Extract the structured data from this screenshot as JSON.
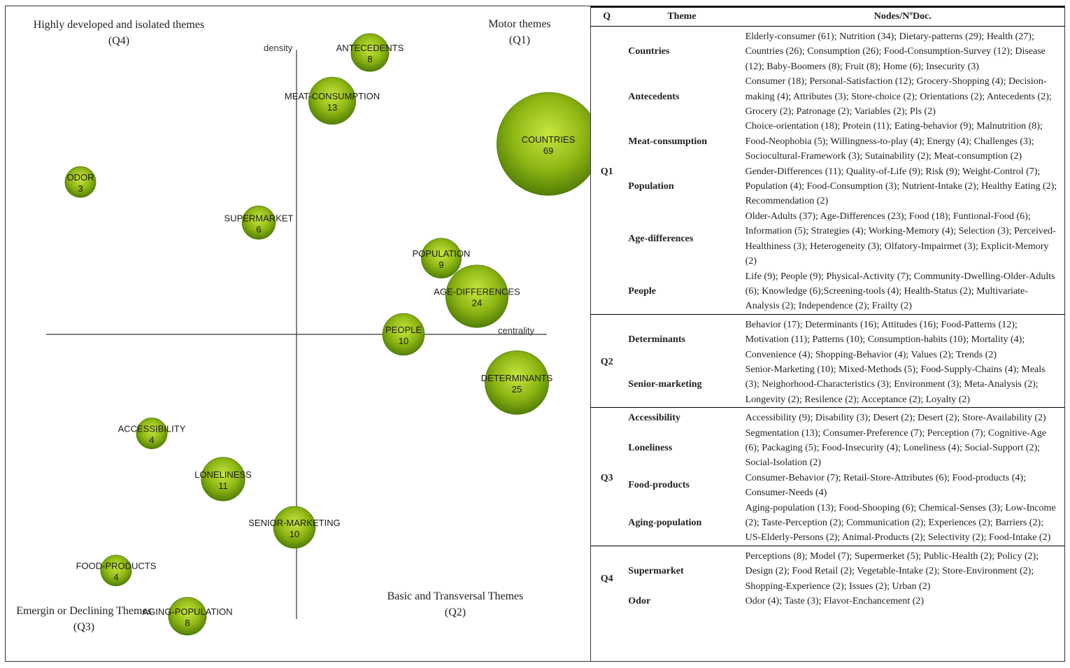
{
  "chart_data": {
    "type": "scatter",
    "subtype": "strategic-diagram-bubble",
    "xlabel": "centrality",
    "ylabel": "density",
    "bubble_color": "#8fb814",
    "bubble_highlight": "#c8e640",
    "bubble_shadow": "#4d7a05",
    "quadrants": [
      {
        "id": "q4",
        "title": "Highly developed and isolated themes",
        "code": "(Q4)",
        "position": "top-left"
      },
      {
        "id": "q1",
        "title": "Motor themes",
        "code": "(Q1)",
        "position": "top-right"
      },
      {
        "id": "q3",
        "title": "Emergin or Declining Themes",
        "code": "(Q3)",
        "position": "bottom-left"
      },
      {
        "id": "q2",
        "title": "Basic and Transversal Themes",
        "code": "(Q2)",
        "position": "bottom-right"
      }
    ],
    "x_range": [
      -12,
      12
    ],
    "y_range": [
      -12,
      12
    ],
    "points": [
      {
        "label": "ANTECEDENTS",
        "value": 8,
        "x": 3.5,
        "y": 11.1
      },
      {
        "label": "MEAT-CONSUMPTION",
        "value": 13,
        "x": 1.7,
        "y": 9.2
      },
      {
        "label": "COUNTRIES",
        "value": 69,
        "x": 12.0,
        "y": 7.5
      },
      {
        "label": "ODOR",
        "value": 3,
        "x": -10.3,
        "y": 6.0
      },
      {
        "label": "SUPERMARKET",
        "value": 6,
        "x": -1.8,
        "y": 4.4
      },
      {
        "label": "POPULATION",
        "value": 9,
        "x": 6.9,
        "y": 3.0
      },
      {
        "label": "AGE-DIFFERENCES",
        "value": 24,
        "x": 8.6,
        "y": 1.5
      },
      {
        "label": "PEOPLE",
        "value": 10,
        "x": 5.1,
        "y": 0.0
      },
      {
        "label": "DETERMINANTS",
        "value": 25,
        "x": 10.5,
        "y": -1.9
      },
      {
        "label": "ACCESSIBILITY",
        "value": 4,
        "x": -6.9,
        "y": -3.9
      },
      {
        "label": "LONELINESS",
        "value": 11,
        "x": -3.5,
        "y": -5.7
      },
      {
        "label": "SENIOR-MARKETING",
        "value": 10,
        "x": -0.1,
        "y": -7.6
      },
      {
        "label": "FOOD-PRODUCTS",
        "value": 4,
        "x": -8.6,
        "y": -9.3
      },
      {
        "label": "AGING-POPULATION",
        "value": 8,
        "x": -5.2,
        "y": -11.1
      }
    ]
  },
  "table": {
    "headers": {
      "q": "Q",
      "theme": "Theme",
      "nodes": "Nodes/NºDoc."
    },
    "groups": [
      {
        "q": "Q1",
        "rows": [
          {
            "theme": "Countries",
            "nodes": "Elderly-consumer (61); Nutrition (34); Dietary-patterns (29); Health (27); Countries (26); Consumption (26); Food-Consumption-Survey (12); Disease (12); Baby-Boomers (8); Fruit (8); Home (6); Insecurity (3)"
          },
          {
            "theme": "Antecedents",
            "nodes": "Consumer (18); Personal-Satisfaction (12); Grocery-Shopping (4); Decision-making (4); Attributes (3); Store-choice (2); Orientations (2); Antecedents (2); Grocery (2); Patronage (2); Variables (2); Pls (2)"
          },
          {
            "theme": "Meat-consumption",
            "nodes": "Choice-orientation (18); Protein (11); Eating-behavior (9); Malnutrition (8); Food-Neophobia (5); Willingness-to-play (4); Energy (4); Challenges (3); Sociocultural-Framework (3); Sutainability (2); Meat-consumption (2)"
          },
          {
            "theme": "Population",
            "nodes": "Gender-Differences (11); Quality-of-Life (9); Risk (9); Weight-Control (7); Population (4); Food-Consumption (3); Nutrient-Intake (2); Healthy Eating (2); Recommendation (2)"
          },
          {
            "theme": "Age-differences",
            "nodes": "Older-Adults (37); Age-Differences (23); Food (18); Funtional-Food (6); Information (5); Strategies (4); Working-Memory (4); Selection (3); Perceived-Healthiness (3); Heterogeneity (3); Olfatory-Impairmet (3); Explicit-Memory (2)"
          },
          {
            "theme": "People",
            "nodes": "Life (9); People (9); Physical-Activity (7); Community-Dwelling-Older-Adults (6); Knowledge (6);Screening-tools (4); Health-Status (2); Multivariate-Analysis (2); Independence (2); Frailty (2)"
          }
        ]
      },
      {
        "q": "Q2",
        "rows": [
          {
            "theme": "Determinants",
            "nodes": "Behavior (17); Determinants (16); Attitudes (16); Food-Patterns (12); Motivation (11); Patterns (10); Consumption-habits (10); Mortality (4); Convenience (4); Shopping-Behavior (4); Values (2); Trends (2)"
          },
          {
            "theme": "Senior-marketing",
            "nodes": "Senior-Marketing (10); Mixed-Methods (5); Food-Supply-Chains (4); Meals (3); Neighorhood-Characteristics (3); Environment (3); Meta-Analysis (2); Longevity (2); Resilence (2); Acceptance (2); Loyalty (2)"
          }
        ]
      },
      {
        "q": "Q3",
        "rows": [
          {
            "theme": "Accessibility",
            "nodes": "Accessibility (9); Disability (3); Desert (2); Desert (2); Store-Availability (2)"
          },
          {
            "theme": "Loneliness",
            "nodes": "Segmentation (13); Consumer-Preference (7); Perception (7); Cognitive-Age (6); Packaging (5); Food-Insecurity (4); Loneliness (4); Social-Support (2); Social-Isolation (2)"
          },
          {
            "theme": "Food-products",
            "nodes": "Consumer-Behavior (7); Retail-Store-Attributes (6); Food-products (4); Consumer-Needs (4)"
          },
          {
            "theme": "Aging-population",
            "nodes": "Aging-population (13); Food-Shooping (6); Chemical-Senses (3); Low-Income (2); Taste-Perception (2); Communication (2); Experiences (2); Barriers (2); US-Elderly-Persons (2); Animal-Products (2); Selectivity (2); Food-Intake (2)"
          }
        ]
      },
      {
        "q": "Q4",
        "rows": [
          {
            "theme": "Supermarket",
            "nodes": "Perceptions (8); Model (7); Supermerket (5); Public-Health (2); Policy (2); Design (2); Food Retail (2); Vegetable-Intake (2); Store-Environment (2); Shopping-Experience (2); Issues (2); Urban (2)"
          },
          {
            "theme": "Odor",
            "nodes": "Odor (4); Taste (3); Flavor-Enchancement (2)"
          }
        ]
      }
    ]
  }
}
